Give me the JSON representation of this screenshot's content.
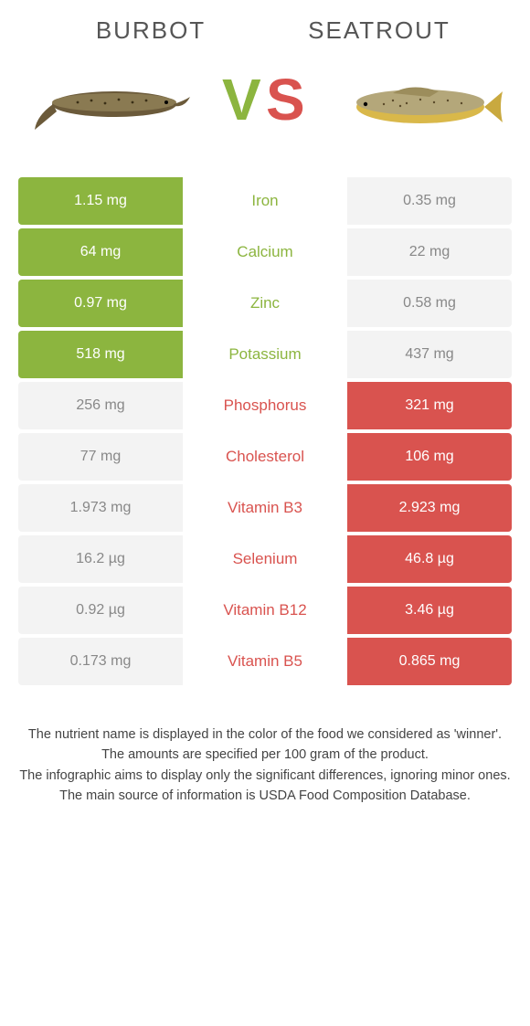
{
  "left_name": "Burbot",
  "right_name": "Seatrout",
  "vs_text": "VS",
  "colors": {
    "left_winner_bg": "#8cb53f",
    "right_winner_bg": "#d9534f",
    "left_label_text": "#8cb53f",
    "right_label_text": "#d9534f",
    "loser_bg": "#f3f3f3",
    "loser_text": "#888888",
    "vs_left": "#8cb53f",
    "vs_right": "#d9534f"
  },
  "rows": [
    {
      "nutrient": "Iron",
      "left": "1.15 mg",
      "right": "0.35 mg",
      "winner": "left"
    },
    {
      "nutrient": "Calcium",
      "left": "64 mg",
      "right": "22 mg",
      "winner": "left"
    },
    {
      "nutrient": "Zinc",
      "left": "0.97 mg",
      "right": "0.58 mg",
      "winner": "left"
    },
    {
      "nutrient": "Potassium",
      "left": "518 mg",
      "right": "437 mg",
      "winner": "left"
    },
    {
      "nutrient": "Phosphorus",
      "left": "256 mg",
      "right": "321 mg",
      "winner": "right"
    },
    {
      "nutrient": "Cholesterol",
      "left": "77 mg",
      "right": "106 mg",
      "winner": "right"
    },
    {
      "nutrient": "Vitamin B3",
      "left": "1.973 mg",
      "right": "2.923 mg",
      "winner": "right"
    },
    {
      "nutrient": "Selenium",
      "left": "16.2 µg",
      "right": "46.8 µg",
      "winner": "right"
    },
    {
      "nutrient": "Vitamin B12",
      "left": "0.92 µg",
      "right": "3.46 µg",
      "winner": "right"
    },
    {
      "nutrient": "Vitamin B5",
      "left": "0.173 mg",
      "right": "0.865 mg",
      "winner": "right"
    }
  ],
  "footer": [
    "The nutrient name is displayed in the color of the food we considered as 'winner'.",
    "The amounts are specified per 100 gram of the product.",
    "The infographic aims to display only the significant differences, ignoring minor ones.",
    "The main source of information is USDA Food Composition Database."
  ]
}
